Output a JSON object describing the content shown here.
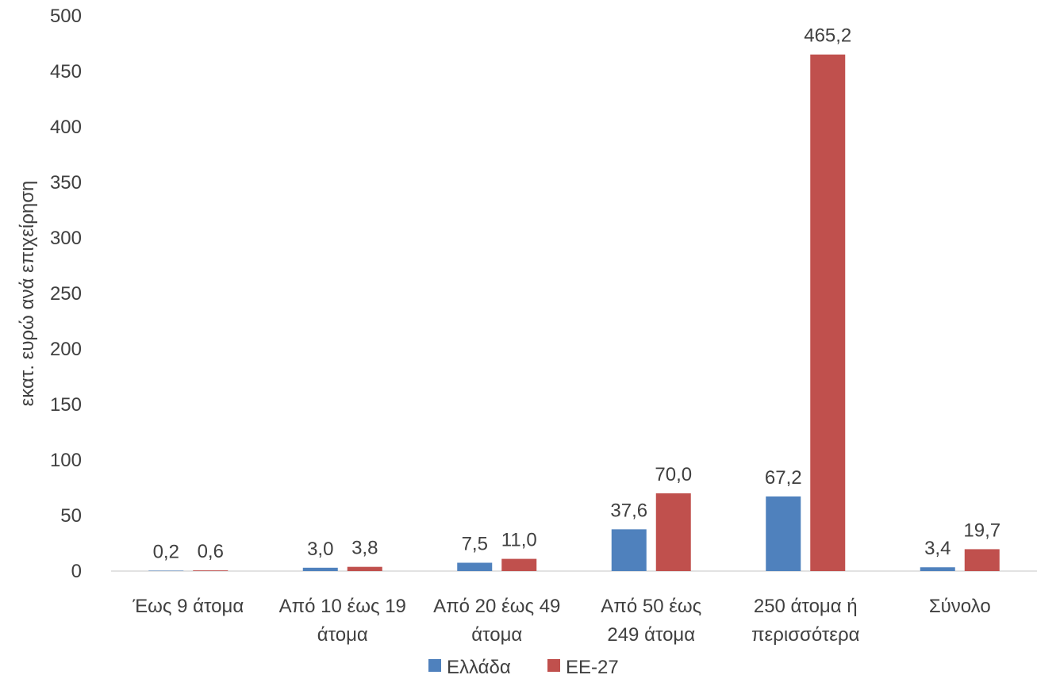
{
  "chart_data": {
    "type": "bar",
    "title": "",
    "xlabel": "",
    "ylabel": "εκατ. ευρώ ανά επιχείρηση",
    "ylim": [
      0,
      500
    ],
    "yticks": [
      0,
      50,
      100,
      150,
      200,
      250,
      300,
      350,
      400,
      450,
      500
    ],
    "grid": false,
    "legend_position": "bottom",
    "categories": [
      [
        "Έως 9 άτομα"
      ],
      [
        "Από 10 έως 19",
        "άτομα"
      ],
      [
        "Από 20 έως 49",
        "άτομα"
      ],
      [
        "Από 50 έως",
        "249 άτομα"
      ],
      [
        "250 άτομα ή",
        "περισσότερα"
      ],
      [
        "Σύνολο"
      ]
    ],
    "series": [
      {
        "name": "Ελλάδα",
        "color": "#4F81BD",
        "values": [
          0.2,
          3.0,
          7.5,
          37.6,
          67.2,
          3.4
        ],
        "labels": [
          "0,2",
          "3,0",
          "7,5",
          "37,6",
          "67,2",
          "3,4"
        ]
      },
      {
        "name": "ΕΕ-27",
        "color": "#C0504D",
        "values": [
          0.6,
          3.8,
          11.0,
          70.0,
          465.2,
          19.7
        ],
        "labels": [
          "0,6",
          "3,8",
          "11,0",
          "70,0",
          "465,2",
          "19,7"
        ]
      }
    ]
  }
}
